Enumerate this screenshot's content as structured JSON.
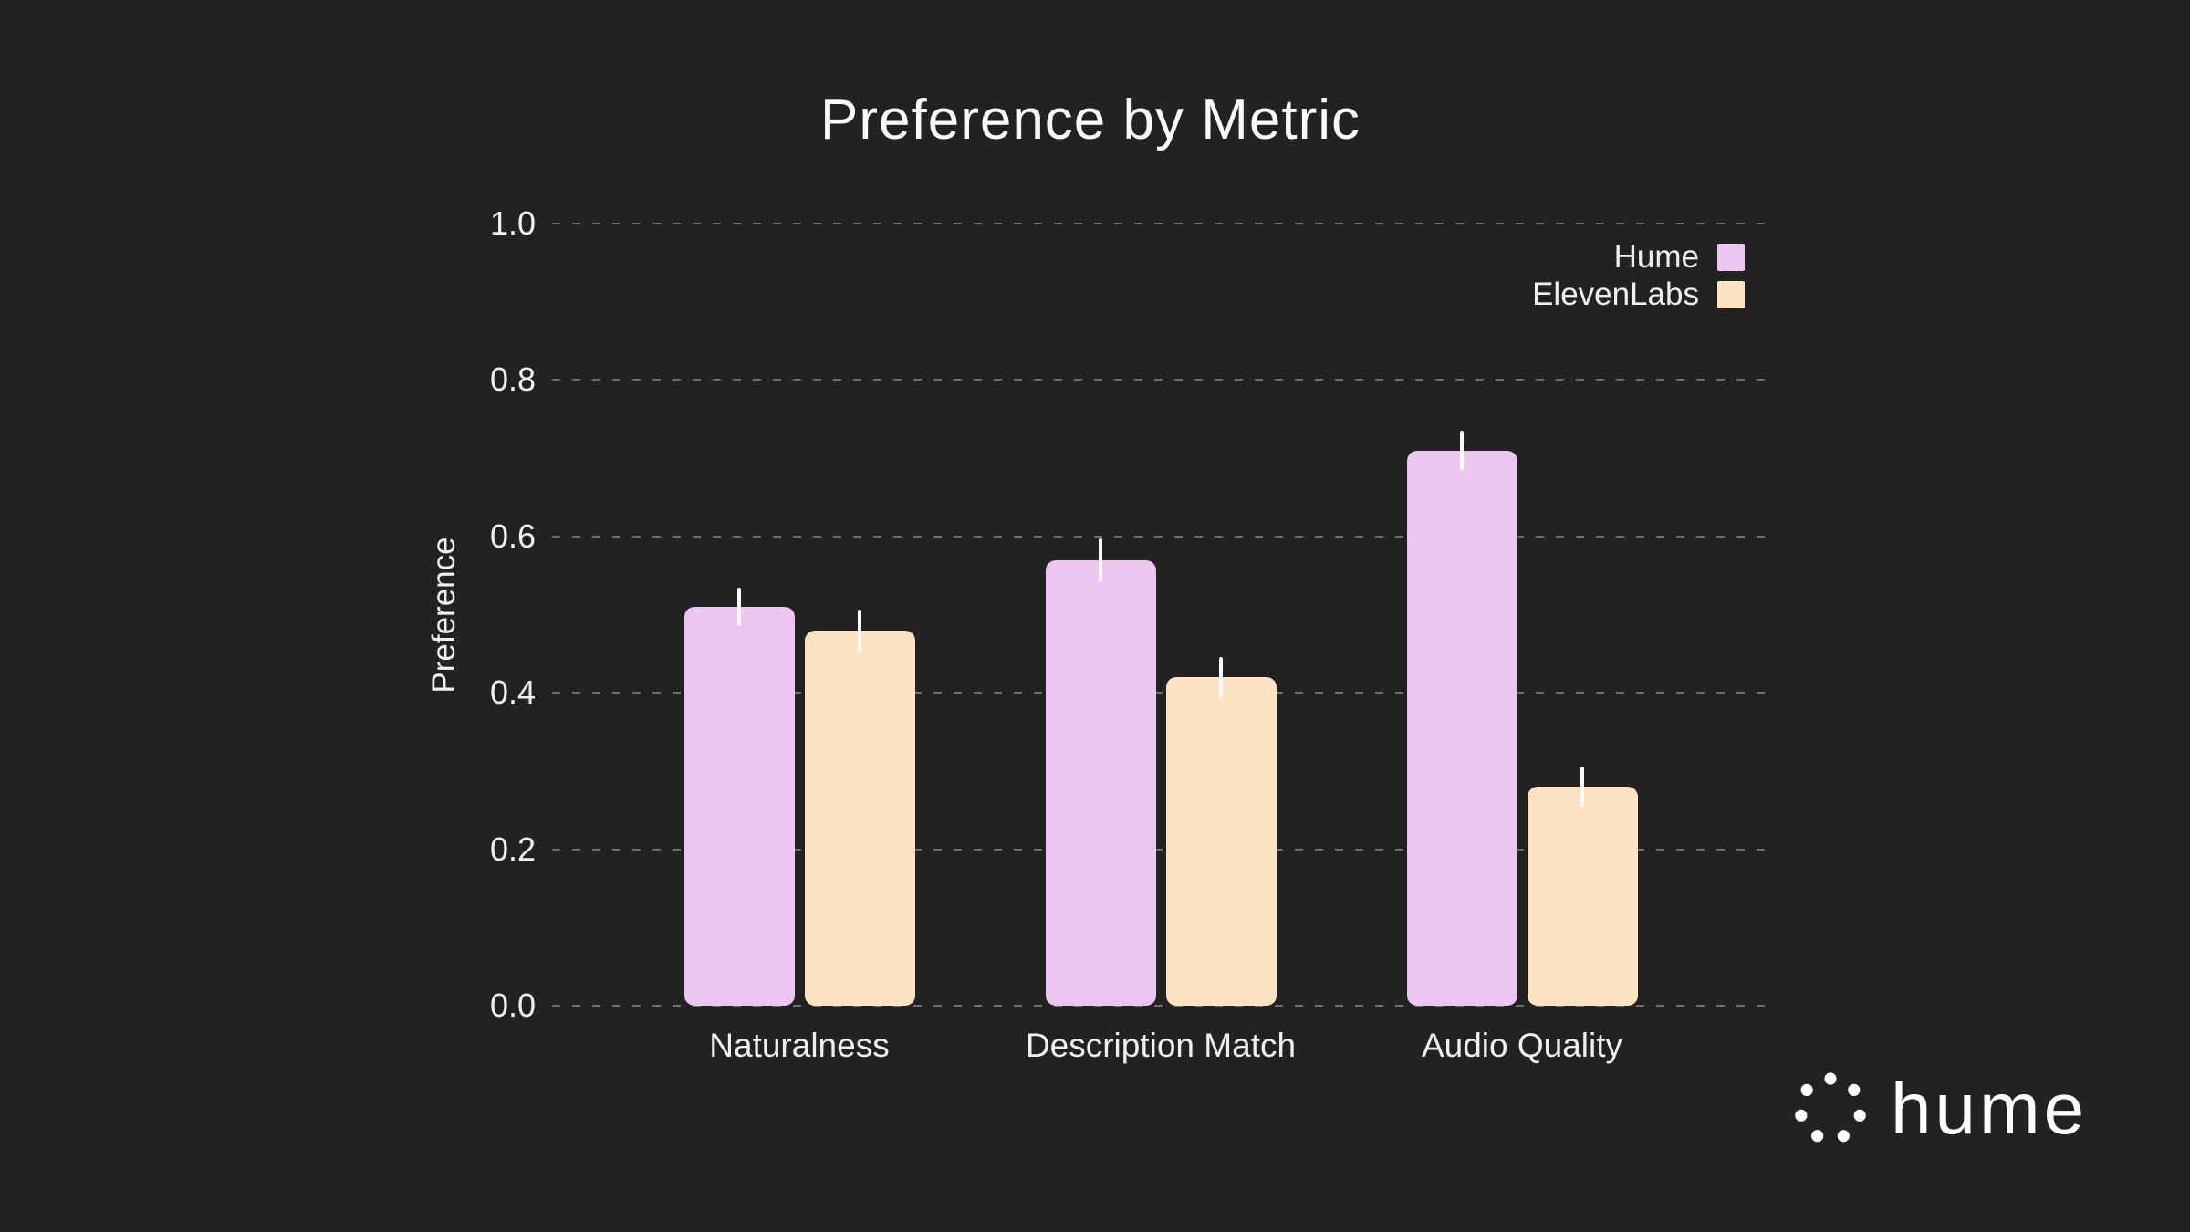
{
  "title": "Preference by Metric",
  "chart_data": {
    "type": "bar",
    "title": "Preference by Metric",
    "xlabel": "",
    "ylabel": "Preference",
    "categories": [
      "Naturalness",
      "Description Match",
      "Audio Quality"
    ],
    "series": [
      {
        "name": "Hume",
        "color": "#ecc5f0",
        "values": [
          0.51,
          0.57,
          0.71
        ],
        "errors": [
          0.025,
          0.027,
          0.025
        ]
      },
      {
        "name": "ElevenLabs",
        "color": "#fde3c3",
        "values": [
          0.48,
          0.42,
          0.28
        ],
        "errors": [
          0.027,
          0.026,
          0.026
        ]
      }
    ],
    "ylim": [
      0,
      1.0
    ],
    "yticks": [
      0.0,
      0.2,
      0.4,
      0.6,
      0.8,
      1.0
    ],
    "ytick_labels": [
      "0.0",
      "0.2",
      "0.4",
      "0.6",
      "0.8",
      "1.0"
    ],
    "grid": "horizontal-dashed",
    "grid_color": "#828282",
    "error_bar_color": "#fbfbfb",
    "legend_position": "upper right",
    "background_color": "#222222",
    "text_color": "#f0f0f0"
  },
  "branding": {
    "wordmark": "hume",
    "logo": "hume-dots-logo",
    "logo_color": "#ffffff"
  }
}
